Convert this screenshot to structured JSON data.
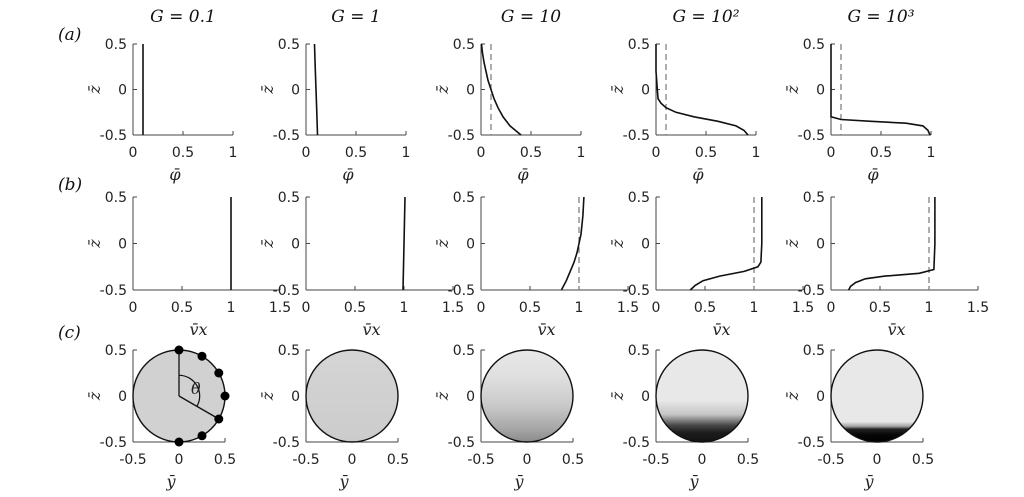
{
  "column_titles": [
    "G = 0.1",
    "G = 1",
    "G = 10",
    "G = 10²",
    "G = 10³"
  ],
  "panel_labels": [
    "(a)",
    "(b)",
    "(c)"
  ],
  "colors": {
    "line": "#111111",
    "dash": "#777777",
    "fill_light": "#e6e6e6",
    "fill_dark": "#000000"
  },
  "chart_data": [
    {
      "row": "a",
      "type": "line",
      "xlabel": "φ̄",
      "ylabel": "z̄",
      "xlim": [
        0,
        1
      ],
      "ylim": [
        -0.5,
        0.5
      ],
      "xticks": [
        "0",
        "0.5",
        "1"
      ],
      "yticks": [
        "0.5",
        "0",
        "-0.5"
      ],
      "reference_x": 0.1,
      "series": [
        {
          "column": "G = 0.1",
          "dashed_reference": false,
          "y": [
            0.5,
            0,
            -0.5
          ],
          "x": [
            0.1,
            0.1,
            0.1
          ]
        },
        {
          "column": "G = 1",
          "dashed_reference": false,
          "y": [
            0.5,
            0.25,
            0,
            -0.25,
            -0.5
          ],
          "x": [
            0.085,
            0.092,
            0.1,
            0.108,
            0.115
          ]
        },
        {
          "column": "G = 10",
          "dashed_reference": true,
          "y": [
            0.5,
            0.4,
            0.3,
            0.2,
            0.1,
            0,
            -0.1,
            -0.2,
            -0.3,
            -0.4,
            -0.5
          ],
          "x": [
            0.005,
            0.015,
            0.03,
            0.05,
            0.07,
            0.1,
            0.13,
            0.17,
            0.22,
            0.29,
            0.4
          ]
        },
        {
          "column": "G = 10²",
          "dashed_reference": true,
          "y": [
            0.5,
            0.2,
            -0.1,
            -0.15,
            -0.2,
            -0.25,
            -0.3,
            -0.35,
            -0.4,
            -0.45,
            -0.5
          ],
          "x": [
            0.0,
            0.0,
            0.02,
            0.05,
            0.1,
            0.2,
            0.38,
            0.62,
            0.8,
            0.88,
            0.92
          ]
        },
        {
          "column": "G = 10³",
          "dashed_reference": true,
          "y": [
            0.5,
            0,
            -0.3,
            -0.33,
            -0.35,
            -0.37,
            -0.4,
            -0.45,
            -0.5
          ],
          "x": [
            0.0,
            0.0,
            0.0,
            0.1,
            0.4,
            0.75,
            0.92,
            0.97,
            0.99
          ]
        }
      ]
    },
    {
      "row": "b",
      "type": "line",
      "xlabel": "v̄x",
      "ylabel": "z̄",
      "xlim": [
        0,
        1.5
      ],
      "ylim": [
        -0.5,
        0.5
      ],
      "xticks": [
        "0",
        "0.5",
        "1",
        "1.5"
      ],
      "yticks": [
        "0.5",
        "0",
        "-0.5"
      ],
      "reference_x": 1,
      "series": [
        {
          "column": "G = 0.1",
          "dashed_reference": false,
          "y": [
            0.5,
            0,
            -0.5
          ],
          "x": [
            1.0,
            1.0,
            1.0
          ]
        },
        {
          "column": "G = 1",
          "dashed_reference": false,
          "y": [
            0.5,
            0,
            -0.5
          ],
          "x": [
            1.01,
            1.0,
            0.99
          ]
        },
        {
          "column": "G = 10",
          "dashed_reference": true,
          "y": [
            0.5,
            0.3,
            0.1,
            0,
            -0.1,
            -0.2,
            -0.3,
            -0.4,
            -0.5
          ],
          "x": [
            1.05,
            1.04,
            1.02,
            1.0,
            0.98,
            0.95,
            0.91,
            0.87,
            0.82
          ]
        },
        {
          "column": "G = 10²",
          "dashed_reference": true,
          "y": [
            0.5,
            0,
            -0.2,
            -0.25,
            -0.3,
            -0.35,
            -0.4,
            -0.45,
            -0.5
          ],
          "x": [
            1.08,
            1.08,
            1.07,
            1.04,
            0.9,
            0.65,
            0.48,
            0.4,
            0.35
          ]
        },
        {
          "column": "G = 10³",
          "dashed_reference": true,
          "y": [
            0.5,
            0,
            -0.28,
            -0.32,
            -0.35,
            -0.38,
            -0.42,
            -0.46,
            -0.5
          ],
          "x": [
            1.06,
            1.06,
            1.05,
            0.9,
            0.55,
            0.35,
            0.25,
            0.2,
            0.18
          ]
        }
      ]
    },
    {
      "row": "c",
      "type": "heatmap",
      "xlabel": "ȳ",
      "ylabel": "z̄",
      "xlim": [
        -0.5,
        0.5
      ],
      "ylim": [
        -0.5,
        0.5
      ],
      "xticks": [
        "-0.5",
        "0",
        "0.5"
      ],
      "yticks": [
        "0.5",
        "0",
        "-0.5"
      ],
      "shape": "circle",
      "radius": 0.5,
      "angle_label": "θ",
      "markers_column": "G = 0.1",
      "marker_angles_deg": [
        0,
        30,
        60,
        90,
        120,
        150,
        180
      ],
      "series": [
        {
          "column": "G = 0.1",
          "gradient": [
            {
              "z": 0.5,
              "shade": 0.1
            },
            {
              "z": -0.5,
              "shade": 0.1
            }
          ]
        },
        {
          "column": "G = 1",
          "gradient": [
            {
              "z": 0.5,
              "shade": 0.08
            },
            {
              "z": 0.1,
              "shade": 0.1
            },
            {
              "z": -0.5,
              "shade": 0.12
            }
          ]
        },
        {
          "column": "G = 10",
          "gradient": [
            {
              "z": 0.5,
              "shade": 0.0
            },
            {
              "z": 0.2,
              "shade": 0.04
            },
            {
              "z": -0.1,
              "shade": 0.13
            },
            {
              "z": -0.35,
              "shade": 0.28
            },
            {
              "z": -0.5,
              "shade": 0.4
            }
          ]
        },
        {
          "column": "G = 10²",
          "gradient": [
            {
              "z": 0.5,
              "shade": 0.0
            },
            {
              "z": -0.05,
              "shade": 0.0
            },
            {
              "z": -0.2,
              "shade": 0.15
            },
            {
              "z": -0.32,
              "shade": 0.7
            },
            {
              "z": -0.4,
              "shade": 0.88
            },
            {
              "z": -0.5,
              "shade": 0.92
            }
          ]
        },
        {
          "column": "G = 10³",
          "gradient": [
            {
              "z": 0.5,
              "shade": 0.0
            },
            {
              "z": -0.28,
              "shade": 0.0
            },
            {
              "z": -0.33,
              "shade": 0.3
            },
            {
              "z": -0.36,
              "shade": 0.85
            },
            {
              "z": -0.42,
              "shade": 0.97
            },
            {
              "z": -0.5,
              "shade": 1.0
            }
          ]
        }
      ]
    }
  ]
}
